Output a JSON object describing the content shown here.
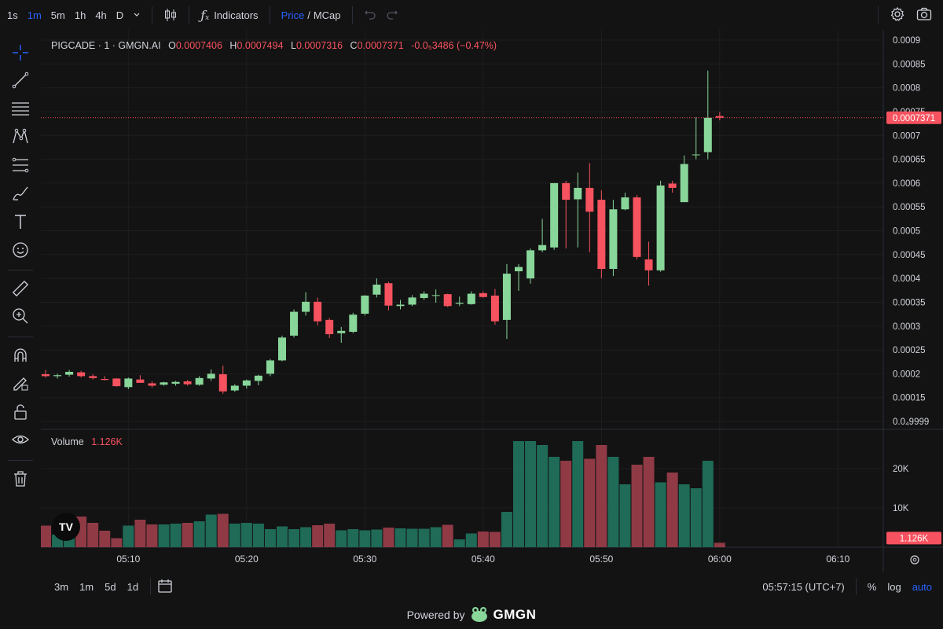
{
  "toolbar": {
    "timeframes": [
      "1s",
      "1m",
      "5m",
      "1h",
      "4h",
      "D"
    ],
    "active_timeframe": "1m",
    "indicators_label": "Indicators",
    "price_label": "Price",
    "slash": "/",
    "mcap_label": "MCap",
    "icons": [
      "chevron-down-icon",
      "candles-icon",
      "fx-icon",
      "undo-icon",
      "redo-icon",
      "settings-icon",
      "camera-icon"
    ]
  },
  "left_tools": [
    "crosshair-icon",
    "trend-line-icon",
    "horizontal-lines-icon",
    "pattern-icon",
    "fib-icon",
    "brush-icon",
    "text-icon",
    "emoji-icon",
    "ruler-icon",
    "zoom-in-icon",
    "magnet-icon",
    "lock-drawing-icon",
    "unlock-icon",
    "eye-icon",
    "trash-icon"
  ],
  "legend": {
    "symbol": "PIGCADE · 1 · GMGN.AI",
    "o_label": "O",
    "o_value": "0.0007406",
    "h_label": "H",
    "h_value": "0.0007494",
    "l_label": "L",
    "l_value": "0.0007316",
    "c_label": "C",
    "c_value": "0.0007371",
    "change": "-0.0₅3486 (−0.47%)"
  },
  "volume_legend": {
    "label": "Volume",
    "value": "1.126K"
  },
  "price_scale": {
    "ticks": [
      "0.0009",
      "0.00085",
      "0.0008",
      "0.00075",
      "0.0007",
      "0.00065",
      "0.0006",
      "0.00055",
      "0.0005",
      "0.00045",
      "0.0004",
      "0.00035",
      "0.0003",
      "0.00025",
      "0.0002",
      "0.00015",
      "0.0₄9999"
    ],
    "current_price_label": "0.0007371"
  },
  "volume_scale": {
    "ticks": [
      "20K",
      "10K"
    ],
    "current_label": "1.126K"
  },
  "time_axis": [
    "05:10",
    "05:20",
    "05:30",
    "05:40",
    "05:50",
    "06:00",
    "06:10"
  ],
  "bottom_bar": {
    "ranges": [
      "3m",
      "1m",
      "5d",
      "1d"
    ],
    "clock": "05:57:15 (UTC+7)",
    "percent_label": "%",
    "log_label": "log",
    "auto_label": "auto"
  },
  "powered_by": {
    "text": "Powered by",
    "brand": "GMGN"
  },
  "colors": {
    "up": "#88d69a",
    "down": "#f7525f",
    "vol_up": "#1f6b57",
    "vol_down": "#8f3a45",
    "background": "#131313"
  },
  "chart_data": {
    "type": "candlestick",
    "x_start": "05:03",
    "x_step": "1m",
    "series": [
      {
        "o": 0.000199,
        "h": 0.000208,
        "l": 0.000192,
        "c": 0.000195
      },
      {
        "o": 0.000195,
        "h": 0.0002,
        "l": 0.00019,
        "c": 0.000197
      },
      {
        "o": 0.000198,
        "h": 0.000208,
        "l": 0.000194,
        "c": 0.000204
      },
      {
        "o": 0.000203,
        "h": 0.000206,
        "l": 0.000192,
        "c": 0.000195
      },
      {
        "o": 0.000195,
        "h": 0.000199,
        "l": 0.000188,
        "c": 0.000191
      },
      {
        "o": 0.000189,
        "h": 0.000195,
        "l": 0.000186,
        "c": 0.000187
      },
      {
        "o": 0.00019,
        "h": 0.000191,
        "l": 0.000173,
        "c": 0.000174
      },
      {
        "o": 0.000172,
        "h": 0.000192,
        "l": 0.000168,
        "c": 0.00019
      },
      {
        "o": 0.000188,
        "h": 0.000197,
        "l": 0.000181,
        "c": 0.000181
      },
      {
        "o": 0.00018,
        "h": 0.000184,
        "l": 0.000171,
        "c": 0.000175
      },
      {
        "o": 0.000177,
        "h": 0.000183,
        "l": 0.000175,
        "c": 0.000182
      },
      {
        "o": 0.000179,
        "h": 0.000185,
        "l": 0.000175,
        "c": 0.000183
      },
      {
        "o": 0.000184,
        "h": 0.000187,
        "l": 0.000175,
        "c": 0.000178
      },
      {
        "o": 0.000177,
        "h": 0.000195,
        "l": 0.000175,
        "c": 0.000191
      },
      {
        "o": 0.00019,
        "h": 0.000209,
        "l": 0.000185,
        "c": 0.0002
      },
      {
        "o": 0.000199,
        "h": 0.000217,
        "l": 0.000158,
        "c": 0.000163
      },
      {
        "o": 0.000165,
        "h": 0.000178,
        "l": 0.000162,
        "c": 0.000175
      },
      {
        "o": 0.000175,
        "h": 0.000188,
        "l": 0.000169,
        "c": 0.000186
      },
      {
        "o": 0.000185,
        "h": 0.000198,
        "l": 0.000176,
        "c": 0.000196
      },
      {
        "o": 0.0002,
        "h": 0.000231,
        "l": 0.000195,
        "c": 0.000228
      },
      {
        "o": 0.000228,
        "h": 0.00028,
        "l": 0.000226,
        "c": 0.000276
      },
      {
        "o": 0.00028,
        "h": 0.000335,
        "l": 0.000276,
        "c": 0.00033
      },
      {
        "o": 0.00033,
        "h": 0.000371,
        "l": 0.000322,
        "c": 0.000351
      },
      {
        "o": 0.000351,
        "h": 0.00036,
        "l": 0.000302,
        "c": 0.00031
      },
      {
        "o": 0.000313,
        "h": 0.000317,
        "l": 0.000275,
        "c": 0.000283
      },
      {
        "o": 0.000285,
        "h": 0.000298,
        "l": 0.000265,
        "c": 0.00029
      },
      {
        "o": 0.000288,
        "h": 0.000328,
        "l": 0.000285,
        "c": 0.000324
      },
      {
        "o": 0.000326,
        "h": 0.000365,
        "l": 0.000322,
        "c": 0.000364
      },
      {
        "o": 0.000366,
        "h": 0.0004,
        "l": 0.00036,
        "c": 0.000387
      },
      {
        "o": 0.00039,
        "h": 0.000393,
        "l": 0.000333,
        "c": 0.000343
      },
      {
        "o": 0.000342,
        "h": 0.000355,
        "l": 0.000335,
        "c": 0.000345
      },
      {
        "o": 0.000345,
        "h": 0.000365,
        "l": 0.000342,
        "c": 0.00036
      },
      {
        "o": 0.000359,
        "h": 0.000373,
        "l": 0.000355,
        "c": 0.000368
      },
      {
        "o": 0.000364,
        "h": 0.000377,
        "l": 0.000349,
        "c": 0.000365
      },
      {
        "o": 0.000367,
        "h": 0.000368,
        "l": 0.00034,
        "c": 0.000342
      },
      {
        "o": 0.000347,
        "h": 0.000362,
        "l": 0.000342,
        "c": 0.000349
      },
      {
        "o": 0.000346,
        "h": 0.000373,
        "l": 0.000345,
        "c": 0.000368
      },
      {
        "o": 0.000369,
        "h": 0.000373,
        "l": 0.00036,
        "c": 0.000361
      },
      {
        "o": 0.000364,
        "h": 0.000378,
        "l": 0.000303,
        "c": 0.00031
      },
      {
        "o": 0.000313,
        "h": 0.00043,
        "l": 0.000273,
        "c": 0.00041
      },
      {
        "o": 0.000415,
        "h": 0.00043,
        "l": 0.000374,
        "c": 0.000424
      },
      {
        "o": 0.0004,
        "h": 0.000463,
        "l": 0.000389,
        "c": 0.000459
      },
      {
        "o": 0.000459,
        "h": 0.000525,
        "l": 0.000455,
        "c": 0.00047
      },
      {
        "o": 0.000465,
        "h": 0.0006,
        "l": 0.00046,
        "c": 0.0006
      },
      {
        "o": 0.0006,
        "h": 0.000605,
        "l": 0.000463,
        "c": 0.000565
      },
      {
        "o": 0.000566,
        "h": 0.000622,
        "l": 0.000465,
        "c": 0.00059
      },
      {
        "o": 0.00059,
        "h": 0.000642,
        "l": 0.000455,
        "c": 0.00054
      },
      {
        "o": 0.000565,
        "h": 0.000585,
        "l": 0.0004,
        "c": 0.00042
      },
      {
        "o": 0.00042,
        "h": 0.000565,
        "l": 0.000405,
        "c": 0.000545
      },
      {
        "o": 0.000545,
        "h": 0.00058,
        "l": 0.000543,
        "c": 0.00057
      },
      {
        "o": 0.00057,
        "h": 0.000575,
        "l": 0.00044,
        "c": 0.000445
      },
      {
        "o": 0.00044,
        "h": 0.000477,
        "l": 0.000385,
        "c": 0.000417
      },
      {
        "o": 0.000417,
        "h": 0.000605,
        "l": 0.000414,
        "c": 0.000595
      },
      {
        "o": 0.000599,
        "h": 0.000605,
        "l": 0.00058,
        "c": 0.00059
      },
      {
        "o": 0.00056,
        "h": 0.000658,
        "l": 0.00056,
        "c": 0.00064
      },
      {
        "o": 0.00066,
        "h": 0.000738,
        "l": 0.00065,
        "c": 0.00066
      },
      {
        "o": 0.000665,
        "h": 0.000836,
        "l": 0.00065,
        "c": 0.000737
      },
      {
        "o": 0.0007406,
        "h": 0.0007494,
        "l": 0.0007316,
        "c": 0.0007371
      }
    ],
    "volume": [
      5500,
      3200,
      7500,
      7800,
      6200,
      4200,
      2300,
      5500,
      7000,
      5800,
      5800,
      6000,
      6200,
      6600,
      8300,
      8500,
      6000,
      6200,
      6000,
      4600,
      5300,
      4600,
      5100,
      5600,
      6000,
      4300,
      4600,
      4300,
      4500,
      5000,
      4800,
      4700,
      4700,
      5100,
      5700,
      2000,
      3500,
      4000,
      3900,
      9000,
      27000,
      27000,
      26000,
      23000,
      22000,
      27000,
      22500,
      26000,
      23000,
      16000,
      21000,
      23000,
      16500,
      19000,
      16000,
      15000,
      22000,
      1126
    ]
  }
}
